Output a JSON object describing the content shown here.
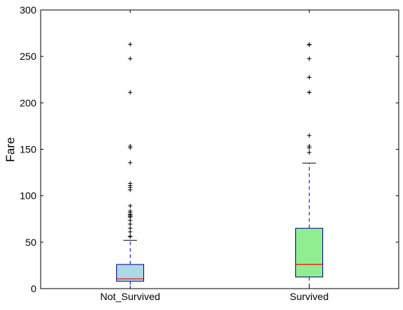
{
  "chart_data": {
    "type": "box",
    "title": "",
    "xlabel": "",
    "ylabel": "Fare",
    "ylim": [
      0,
      300
    ],
    "yticks": [
      0,
      50,
      100,
      150,
      200,
      250,
      300
    ],
    "grid": false,
    "categories": [
      "Not_Survived",
      "Survived"
    ],
    "boxes": [
      {
        "category": "Not_Survived",
        "fill": "#add8e6",
        "whisker_low": 0,
        "q1": 7.9,
        "median": 10.5,
        "q3": 26.0,
        "whisker_high": 52.0,
        "outliers": [
          55.9,
          56.5,
          61.2,
          65.0,
          69.5,
          73.5,
          76.7,
          78.0,
          79.2,
          80.0,
          81.9,
          83.5,
          89.1,
          106.4,
          108.9,
          110.9,
          113.3,
          135.6,
          151.6,
          153.5,
          211.3,
          247.5,
          263.0
        ]
      },
      {
        "category": "Survived",
        "fill": "#90ee90",
        "whisker_low": 0,
        "q1": 12.5,
        "median": 26.0,
        "q3": 65.0,
        "whisker_high": 135.0,
        "outliers": [
          146.5,
          151.6,
          153.5,
          164.9,
          211.3,
          211.5,
          227.5,
          227.6,
          247.5,
          262.4,
          263.0
        ]
      }
    ],
    "colors": {
      "box_edge": "#00008b",
      "whisker": "#0000ff",
      "median": "#ff0000",
      "axis": "#000000"
    }
  }
}
